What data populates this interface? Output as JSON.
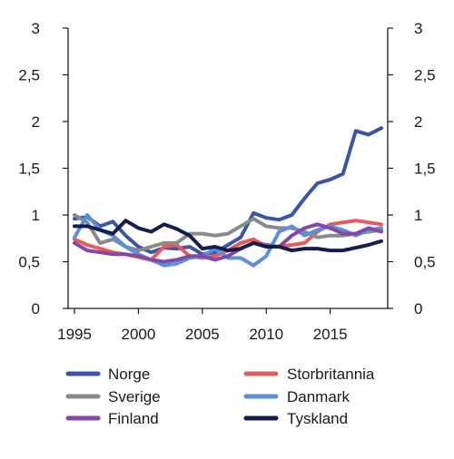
{
  "chart_data": {
    "type": "line",
    "title": "",
    "xlabel": "",
    "ylabel": "",
    "xlim": [
      1994.5,
      2019.5
    ],
    "ylim": [
      0,
      3
    ],
    "x_ticks": [
      1995,
      2000,
      2005,
      2010,
      2015
    ],
    "x_tick_labels": [
      "1995",
      "2000",
      "2005",
      "2010",
      "2015"
    ],
    "y_ticks": [
      0,
      0.5,
      1,
      1.5,
      2,
      2.5,
      3
    ],
    "y_tick_labels": [
      "0",
      "0,5",
      "1",
      "1,5",
      "2",
      "2,5",
      "3"
    ],
    "grid": false,
    "dual_y_axis": true,
    "legend_position": "bottom",
    "x": [
      1995,
      1996,
      1997,
      1998,
      1999,
      2000,
      2001,
      2002,
      2003,
      2004,
      2005,
      2006,
      2007,
      2008,
      2009,
      2010,
      2011,
      2012,
      2013,
      2014,
      2015,
      2016,
      2017,
      2018,
      2019
    ],
    "series": [
      {
        "name": "Norge",
        "color": "#3a55a5",
        "values": [
          0.96,
          0.98,
          0.88,
          0.93,
          0.78,
          0.66,
          0.6,
          0.65,
          0.64,
          0.66,
          0.58,
          0.6,
          0.68,
          0.76,
          1.02,
          0.97,
          0.95,
          1.0,
          1.18,
          1.34,
          1.38,
          1.44,
          1.9,
          1.86,
          1.93
        ]
      },
      {
        "name": "Storbritannia",
        "color": "#e85a5a",
        "values": [
          0.74,
          0.68,
          0.64,
          0.6,
          0.58,
          0.55,
          0.52,
          0.66,
          0.68,
          0.56,
          0.54,
          0.56,
          0.62,
          0.7,
          0.74,
          0.66,
          0.66,
          0.68,
          0.7,
          0.82,
          0.9,
          0.92,
          0.94,
          0.92,
          0.9
        ]
      },
      {
        "name": "Sverige",
        "color": "#8a8a8a",
        "values": [
          1.0,
          0.92,
          0.7,
          0.74,
          0.66,
          0.62,
          0.66,
          0.7,
          0.7,
          0.8,
          0.8,
          0.78,
          0.8,
          0.88,
          0.96,
          0.88,
          0.86,
          0.86,
          0.82,
          0.76,
          0.78,
          0.78,
          0.8,
          0.82,
          0.84
        ]
      },
      {
        "name": "Danmark",
        "color": "#5b8fd9",
        "values": [
          0.76,
          1.0,
          0.84,
          0.78,
          0.66,
          0.58,
          0.52,
          0.46,
          0.48,
          0.54,
          0.56,
          0.64,
          0.54,
          0.54,
          0.46,
          0.56,
          0.82,
          0.88,
          0.78,
          0.84,
          0.88,
          0.84,
          0.78,
          0.84,
          0.86
        ]
      },
      {
        "name": "Finland",
        "color": "#8448a8",
        "values": [
          0.7,
          0.62,
          0.6,
          0.58,
          0.58,
          0.56,
          0.52,
          0.5,
          0.52,
          0.56,
          0.56,
          0.52,
          0.56,
          0.64,
          0.7,
          0.68,
          0.66,
          0.78,
          0.86,
          0.9,
          0.86,
          0.8,
          0.8,
          0.86,
          0.82
        ]
      },
      {
        "name": "Tyskland",
        "color": "#141d4f",
        "values": [
          0.88,
          0.88,
          0.84,
          0.8,
          0.94,
          0.86,
          0.82,
          0.9,
          0.85,
          0.78,
          0.64,
          0.66,
          0.62,
          0.64,
          0.7,
          0.66,
          0.66,
          0.62,
          0.64,
          0.64,
          0.62,
          0.62,
          0.65,
          0.68,
          0.72
        ]
      }
    ]
  }
}
